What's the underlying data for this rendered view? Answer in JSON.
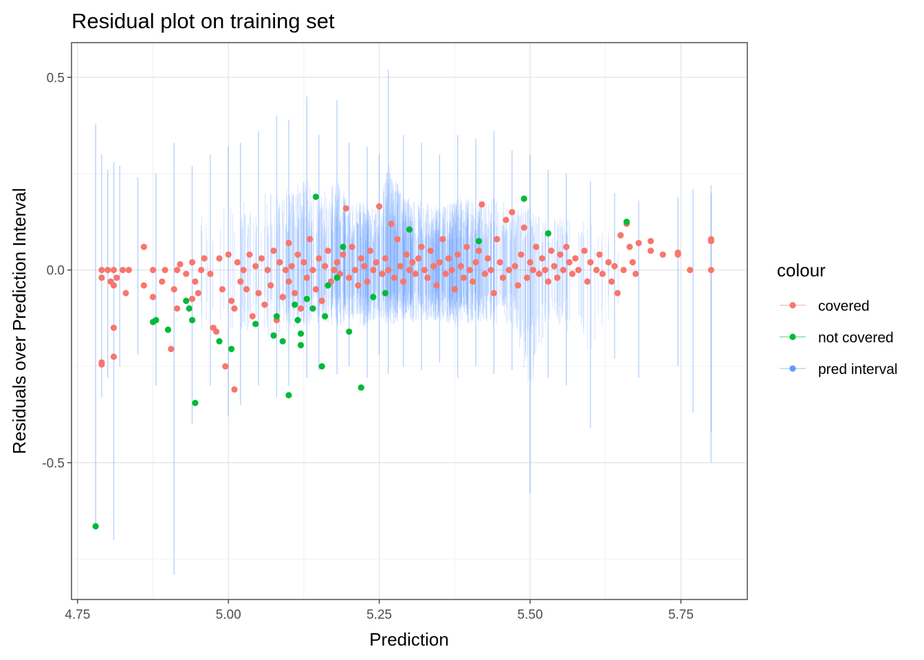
{
  "chart_data": {
    "type": "scatter",
    "title": "Residual plot on training set",
    "xlabel": "Prediction",
    "ylabel": "Residuals over Prediction Interval",
    "xlim": [
      4.74,
      5.86
    ],
    "ylim": [
      -0.855,
      0.59
    ],
    "x_ticks": [
      "4.75",
      "5.00",
      "5.25",
      "5.50",
      "5.75"
    ],
    "x_tick_values": [
      4.75,
      5.0,
      5.25,
      5.5,
      5.75
    ],
    "y_ticks": [
      "-0.5",
      "0.0",
      "0.5"
    ],
    "y_tick_values": [
      -0.5,
      0.0,
      0.5
    ],
    "grid": true,
    "legend": {
      "title": "colour",
      "position": "right",
      "items": [
        {
          "label": "covered",
          "color": "#F8766D"
        },
        {
          "label": "not covered",
          "color": "#00BA38"
        },
        {
          "label": "pred interval",
          "color": "#619CFF"
        }
      ]
    },
    "series": [
      {
        "name": "pred interval",
        "color": "#619CFF",
        "intervals": [
          [
            4.78,
            -0.67,
            0.38
          ],
          [
            4.79,
            -0.33,
            0.3
          ],
          [
            4.8,
            -0.28,
            0.26
          ],
          [
            4.81,
            -0.7,
            0.28
          ],
          [
            4.82,
            -0.25,
            0.27
          ],
          [
            4.85,
            -0.22,
            0.24
          ],
          [
            4.88,
            -0.3,
            0.25
          ],
          [
            4.91,
            -0.79,
            0.33
          ],
          [
            4.94,
            -0.4,
            0.27
          ],
          [
            4.97,
            -0.3,
            0.3
          ],
          [
            5.0,
            -0.38,
            0.32
          ],
          [
            5.02,
            -0.35,
            0.33
          ],
          [
            5.05,
            -0.3,
            0.36
          ],
          [
            5.08,
            -0.33,
            0.4
          ],
          [
            5.1,
            -0.3,
            0.39
          ],
          [
            5.13,
            -0.28,
            0.45
          ],
          [
            5.15,
            -0.26,
            0.35
          ],
          [
            5.18,
            -0.27,
            0.44
          ],
          [
            5.2,
            -0.25,
            0.33
          ],
          [
            5.23,
            -0.28,
            0.32
          ],
          [
            5.25,
            -0.22,
            0.3
          ],
          [
            5.265,
            -0.27,
            0.52
          ],
          [
            5.29,
            -0.25,
            0.35
          ],
          [
            5.32,
            -0.26,
            0.33
          ],
          [
            5.35,
            -0.24,
            0.3
          ],
          [
            5.38,
            -0.28,
            0.35
          ],
          [
            5.41,
            -0.25,
            0.34
          ],
          [
            5.44,
            -0.27,
            0.36
          ],
          [
            5.47,
            -0.26,
            0.31
          ],
          [
            5.5,
            -0.58,
            0.3
          ],
          [
            5.53,
            -0.28,
            0.26
          ],
          [
            5.56,
            -0.3,
            0.25
          ],
          [
            5.6,
            -0.41,
            0.23
          ],
          [
            5.64,
            -0.23,
            0.2
          ],
          [
            5.68,
            -0.28,
            0.18
          ],
          [
            5.745,
            -0.25,
            0.19
          ],
          [
            5.77,
            -0.37,
            0.21
          ],
          [
            5.8,
            -0.5,
            0.22
          ],
          [
            5.8,
            -0.42,
            0.2
          ]
        ]
      },
      {
        "name": "covered",
        "color": "#F8766D",
        "points": [
          [
            4.79,
            0.0
          ],
          [
            4.79,
            -0.02
          ],
          [
            4.79,
            -0.24
          ],
          [
            4.79,
            -0.245
          ],
          [
            4.8,
            0.0
          ],
          [
            4.805,
            -0.03
          ],
          [
            4.81,
            -0.04
          ],
          [
            4.81,
            -0.15
          ],
          [
            4.81,
            -0.225
          ],
          [
            4.81,
            0.0
          ],
          [
            4.815,
            -0.02
          ],
          [
            4.825,
            0.0
          ],
          [
            4.83,
            -0.06
          ],
          [
            4.835,
            0.0
          ],
          [
            4.86,
            0.06
          ],
          [
            4.86,
            -0.04
          ],
          [
            4.875,
            -0.07
          ],
          [
            4.875,
            0.0
          ],
          [
            4.89,
            -0.03
          ],
          [
            4.895,
            0.0
          ],
          [
            4.905,
            -0.205
          ],
          [
            4.91,
            -0.05
          ],
          [
            4.915,
            -0.1
          ],
          [
            4.915,
            0.0
          ],
          [
            4.92,
            0.015
          ],
          [
            4.93,
            -0.01
          ],
          [
            4.94,
            -0.075
          ],
          [
            4.94,
            0.02
          ],
          [
            4.945,
            -0.03
          ],
          [
            4.95,
            -0.06
          ],
          [
            4.955,
            0.0
          ],
          [
            4.96,
            0.03
          ],
          [
            4.97,
            -0.01
          ],
          [
            4.975,
            -0.15
          ],
          [
            4.98,
            -0.16
          ],
          [
            4.985,
            0.03
          ],
          [
            4.99,
            -0.05
          ],
          [
            4.995,
            -0.25
          ],
          [
            5.0,
            0.04
          ],
          [
            5.005,
            -0.08
          ],
          [
            5.01,
            -0.31
          ],
          [
            5.01,
            -0.1
          ],
          [
            5.015,
            0.02
          ],
          [
            5.02,
            -0.03
          ],
          [
            5.025,
            0.0
          ],
          [
            5.03,
            -0.05
          ],
          [
            5.035,
            0.04
          ],
          [
            5.04,
            -0.12
          ],
          [
            5.045,
            0.01
          ],
          [
            5.05,
            -0.06
          ],
          [
            5.055,
            0.03
          ],
          [
            5.06,
            -0.09
          ],
          [
            5.065,
            0.0
          ],
          [
            5.07,
            -0.04
          ],
          [
            5.075,
            0.05
          ],
          [
            5.08,
            -0.13
          ],
          [
            5.085,
            0.02
          ],
          [
            5.09,
            -0.07
          ],
          [
            5.095,
            0.0
          ],
          [
            5.1,
            0.07
          ],
          [
            5.1,
            -0.03
          ],
          [
            5.105,
            0.01
          ],
          [
            5.11,
            -0.06
          ],
          [
            5.115,
            0.04
          ],
          [
            5.12,
            -0.1
          ],
          [
            5.125,
            0.02
          ],
          [
            5.13,
            -0.02
          ],
          [
            5.135,
            0.08
          ],
          [
            5.14,
            0.0
          ],
          [
            5.145,
            -0.05
          ],
          [
            5.15,
            0.03
          ],
          [
            5.155,
            -0.08
          ],
          [
            5.16,
            0.01
          ],
          [
            5.165,
            0.05
          ],
          [
            5.17,
            -0.03
          ],
          [
            5.175,
            0.0
          ],
          [
            5.18,
            0.02
          ],
          [
            5.185,
            -0.01
          ],
          [
            5.19,
            0.04
          ],
          [
            5.195,
            0.16
          ],
          [
            5.2,
            -0.02
          ],
          [
            5.205,
            0.06
          ],
          [
            5.21,
            0.0
          ],
          [
            5.215,
            -0.04
          ],
          [
            5.22,
            0.03
          ],
          [
            5.225,
            0.01
          ],
          [
            5.23,
            -0.03
          ],
          [
            5.235,
            0.05
          ],
          [
            5.24,
            0.0
          ],
          [
            5.245,
            0.02
          ],
          [
            5.25,
            0.165
          ],
          [
            5.255,
            -0.01
          ],
          [
            5.26,
            0.03
          ],
          [
            5.265,
            0.0
          ],
          [
            5.27,
            0.12
          ],
          [
            5.275,
            -0.02
          ],
          [
            5.28,
            0.08
          ],
          [
            5.285,
            0.01
          ],
          [
            5.29,
            -0.03
          ],
          [
            5.295,
            0.04
          ],
          [
            5.3,
            0.0
          ],
          [
            5.305,
            0.02
          ],
          [
            5.31,
            -0.01
          ],
          [
            5.315,
            0.03
          ],
          [
            5.32,
            0.06
          ],
          [
            5.325,
            0.0
          ],
          [
            5.33,
            -0.02
          ],
          [
            5.335,
            0.05
          ],
          [
            5.34,
            0.01
          ],
          [
            5.345,
            -0.04
          ],
          [
            5.35,
            0.02
          ],
          [
            5.355,
            0.08
          ],
          [
            5.36,
            -0.01
          ],
          [
            5.365,
            0.03
          ],
          [
            5.37,
            0.0
          ],
          [
            5.375,
            -0.05
          ],
          [
            5.38,
            0.04
          ],
          [
            5.385,
            0.01
          ],
          [
            5.39,
            -0.02
          ],
          [
            5.395,
            0.06
          ],
          [
            5.4,
            0.0
          ],
          [
            5.405,
            -0.03
          ],
          [
            5.41,
            0.02
          ],
          [
            5.415,
            0.05
          ],
          [
            5.42,
            0.17
          ],
          [
            5.425,
            -0.01
          ],
          [
            5.43,
            0.03
          ],
          [
            5.435,
            0.0
          ],
          [
            5.44,
            -0.06
          ],
          [
            5.445,
            0.08
          ],
          [
            5.45,
            0.02
          ],
          [
            5.455,
            -0.02
          ],
          [
            5.46,
            0.13
          ],
          [
            5.465,
            0.0
          ],
          [
            5.47,
            0.15
          ],
          [
            5.475,
            0.01
          ],
          [
            5.48,
            -0.04
          ],
          [
            5.485,
            0.04
          ],
          [
            5.49,
            0.11
          ],
          [
            5.495,
            -0.02
          ],
          [
            5.5,
            0.02
          ],
          [
            5.505,
            0.0
          ],
          [
            5.51,
            0.06
          ],
          [
            5.515,
            -0.01
          ],
          [
            5.52,
            0.03
          ],
          [
            5.525,
            0.0
          ],
          [
            5.53,
            -0.03
          ],
          [
            5.535,
            0.05
          ],
          [
            5.54,
            0.01
          ],
          [
            5.545,
            -0.02
          ],
          [
            5.55,
            0.04
          ],
          [
            5.555,
            0.0
          ],
          [
            5.56,
            0.06
          ],
          [
            5.565,
            0.02
          ],
          [
            5.57,
            -0.01
          ],
          [
            5.575,
            0.03
          ],
          [
            5.58,
            0.0
          ],
          [
            5.59,
            0.05
          ],
          [
            5.595,
            -0.03
          ],
          [
            5.6,
            0.02
          ],
          [
            5.61,
            0.0
          ],
          [
            5.615,
            0.04
          ],
          [
            5.62,
            -0.01
          ],
          [
            5.63,
            0.02
          ],
          [
            5.635,
            -0.03
          ],
          [
            5.64,
            0.01
          ],
          [
            5.645,
            -0.06
          ],
          [
            5.65,
            0.09
          ],
          [
            5.655,
            0.0
          ],
          [
            5.66,
            0.12
          ],
          [
            5.665,
            0.06
          ],
          [
            5.67,
            0.02
          ],
          [
            5.675,
            -0.01
          ],
          [
            5.68,
            0.07
          ],
          [
            5.7,
            0.075
          ],
          [
            5.7,
            0.05
          ],
          [
            5.72,
            0.04
          ],
          [
            5.745,
            0.045
          ],
          [
            5.745,
            0.04
          ],
          [
            5.765,
            0.0
          ],
          [
            5.8,
            0.08
          ],
          [
            5.8,
            0.075
          ],
          [
            5.8,
            0.0
          ]
        ]
      },
      {
        "name": "not covered",
        "color": "#00BA38",
        "points": [
          [
            4.78,
            -0.665
          ],
          [
            4.875,
            -0.135
          ],
          [
            4.88,
            -0.13
          ],
          [
            4.9,
            -0.155
          ],
          [
            4.93,
            -0.08
          ],
          [
            4.935,
            -0.1
          ],
          [
            4.94,
            -0.13
          ],
          [
            4.945,
            -0.345
          ],
          [
            4.985,
            -0.185
          ],
          [
            5.005,
            -0.205
          ],
          [
            5.045,
            -0.14
          ],
          [
            5.075,
            -0.17
          ],
          [
            5.08,
            -0.12
          ],
          [
            5.09,
            -0.185
          ],
          [
            5.1,
            -0.325
          ],
          [
            5.11,
            -0.09
          ],
          [
            5.115,
            -0.13
          ],
          [
            5.12,
            -0.165
          ],
          [
            5.12,
            -0.195
          ],
          [
            5.13,
            -0.075
          ],
          [
            5.14,
            -0.1
          ],
          [
            5.145,
            0.19
          ],
          [
            5.155,
            -0.25
          ],
          [
            5.16,
            -0.12
          ],
          [
            5.165,
            -0.04
          ],
          [
            5.18,
            -0.02
          ],
          [
            5.19,
            0.06
          ],
          [
            5.2,
            -0.16
          ],
          [
            5.22,
            -0.305
          ],
          [
            5.24,
            -0.07
          ],
          [
            5.26,
            -0.06
          ],
          [
            5.3,
            0.105
          ],
          [
            5.415,
            0.075
          ],
          [
            5.49,
            0.185
          ],
          [
            5.53,
            0.095
          ],
          [
            5.66,
            0.125
          ]
        ]
      }
    ]
  }
}
